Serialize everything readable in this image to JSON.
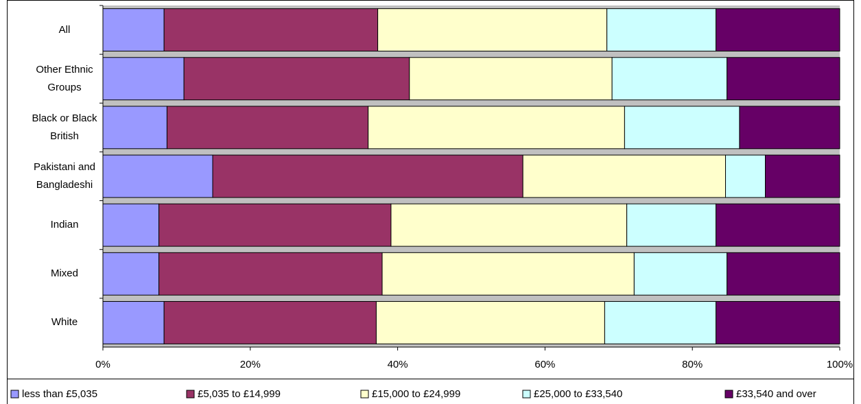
{
  "chart_data": {
    "type": "stacked_bar_horizontal",
    "categories": [
      "All",
      "Other Ethnic Groups",
      "Black or Black British",
      "Pakistani and Bangladeshi",
      "Indian",
      "Mixed",
      "White"
    ],
    "series": [
      {
        "name": "less than £5,035",
        "color": "#9999ff",
        "values": [
          8.3,
          11.0,
          8.7,
          14.9,
          7.6,
          7.6,
          8.3
        ]
      },
      {
        "name": "£5,035 to £14,999",
        "color": "#993366",
        "values": [
          29.0,
          30.6,
          27.3,
          42.1,
          31.5,
          30.3,
          28.8
        ]
      },
      {
        "name": "£15,000 to £24,999",
        "color": "#ffffcc",
        "values": [
          31.1,
          27.5,
          34.8,
          27.5,
          32.0,
          34.2,
          31.0
        ]
      },
      {
        "name": "£25,000 to £33,540",
        "color": "#ccffff",
        "values": [
          14.8,
          15.6,
          15.6,
          5.4,
          12.1,
          12.6,
          15.1
        ]
      },
      {
        "name": "£33,540 and over",
        "color": "#660066",
        "values": [
          16.8,
          15.3,
          13.6,
          10.1,
          16.8,
          15.3,
          16.8
        ]
      }
    ],
    "xlim": [
      0,
      100
    ],
    "xticks": [
      {
        "value": 0,
        "label": "0%"
      },
      {
        "value": 20,
        "label": "20%"
      },
      {
        "value": 40,
        "label": "40%"
      },
      {
        "value": 60,
        "label": "60%"
      },
      {
        "value": 80,
        "label": "80%"
      },
      {
        "value": 100,
        "label": "100%"
      }
    ],
    "legend": "bottom"
  }
}
